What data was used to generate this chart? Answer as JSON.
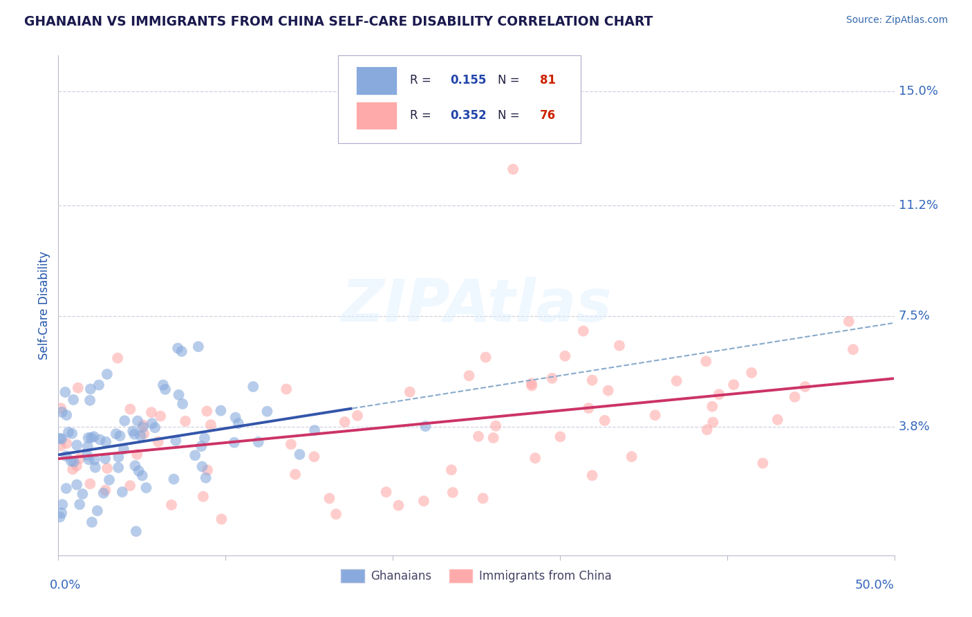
{
  "title": "GHANAIAN VS IMMIGRANTS FROM CHINA SELF-CARE DISABILITY CORRELATION CHART",
  "source": "Source: ZipAtlas.com",
  "ylabel": "Self-Care Disability",
  "xlim": [
    0.0,
    0.5
  ],
  "ylim": [
    -0.005,
    0.162
  ],
  "ytick_labels": [
    "3.8%",
    "7.5%",
    "11.2%",
    "15.0%"
  ],
  "ytick_vals": [
    0.038,
    0.075,
    0.112,
    0.15
  ],
  "watermark": "ZIPAtlas",
  "r_blue": "0.155",
  "n_blue": "81",
  "r_pink": "0.352",
  "n_pink": "76",
  "blue_color": "#88AADD",
  "pink_color": "#FFAAAA",
  "title_color": "#1a1a4e",
  "axis_label_color": "#2255aa",
  "tick_label_color": "#3366bb",
  "source_color": "#3366aa",
  "grid_color": "#CCCCDD",
  "trend_blue_solid": "#3355AA",
  "trend_pink_solid": "#CC3366",
  "trend_blue_dashed": "#88AACC",
  "legend_r_color": "#2244aa",
  "legend_n_color": "#cc2200",
  "background": "#ffffff"
}
